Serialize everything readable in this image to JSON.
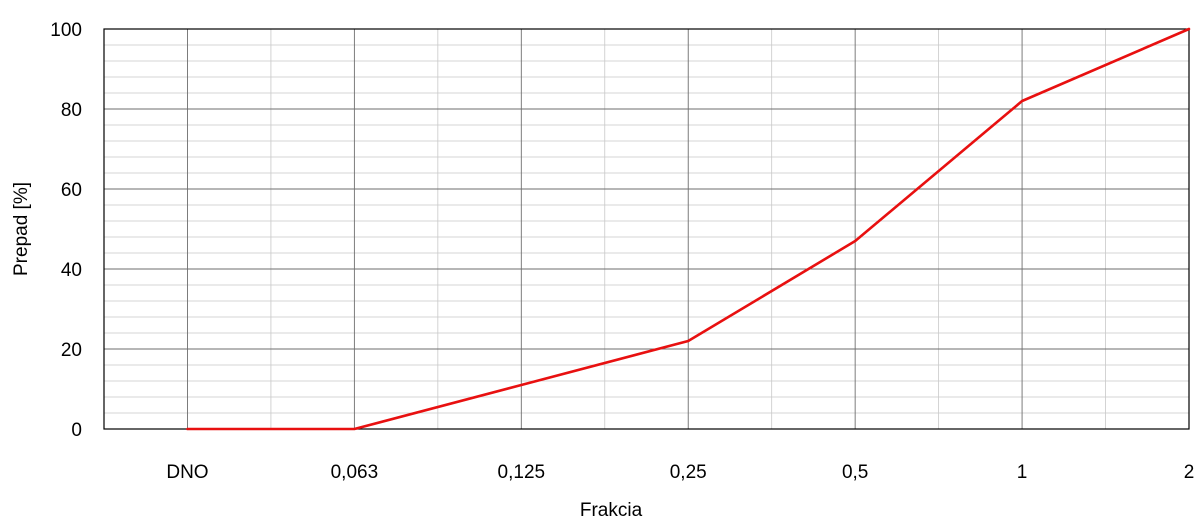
{
  "chart_data": {
    "type": "line",
    "title": "",
    "xlabel": "Frakcia",
    "ylabel": "Prepad [%]",
    "categories": [
      "DNO",
      "0,063",
      "0,125",
      "0,25",
      "0,5",
      "1",
      "2"
    ],
    "series": [
      {
        "values": [
          0,
          0,
          11,
          22,
          47,
          82,
          100
        ],
        "color": "#e81010"
      }
    ],
    "ylim": [
      0,
      100
    ],
    "yticks": [
      "0",
      "20",
      "40",
      "60",
      "80",
      "100"
    ],
    "grid": true,
    "legend": "none"
  }
}
